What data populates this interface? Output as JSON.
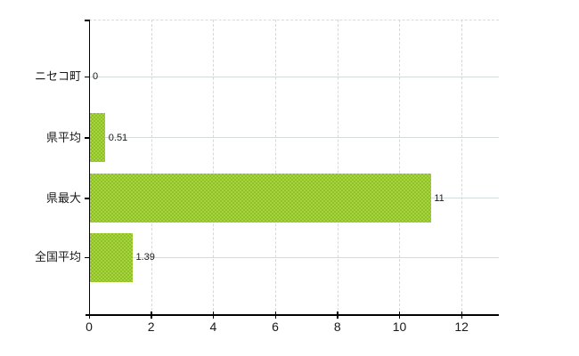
{
  "chart_data": {
    "type": "bar",
    "orientation": "horizontal",
    "title": "",
    "categories": [
      "ニセコ町",
      "県平均",
      "県最大",
      "全国平均"
    ],
    "values": [
      0,
      0.51,
      11,
      1.39
    ],
    "value_labels": [
      "0",
      "0.51",
      "11",
      "1.39"
    ],
    "x_ticks": [
      0,
      2,
      4,
      6,
      8,
      10,
      12
    ],
    "x_tick_labels": [
      "0",
      "2",
      "4",
      "6",
      "8",
      "10",
      "12"
    ],
    "xlim": [
      0,
      13.2
    ],
    "grid": "on",
    "legend": "none",
    "colors": {
      "bar": "#9bc832",
      "bar_check_light": "#a7d33c",
      "bar_check_dark": "#8ec02a",
      "grid_horizontal": "#d2dcdc",
      "grid_vertical_dashed": "#d8d8d8",
      "axis": "#000000",
      "text": "#1a1a1a",
      "background": "#ffffff"
    }
  }
}
